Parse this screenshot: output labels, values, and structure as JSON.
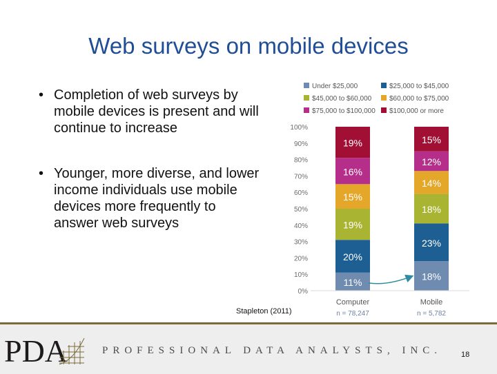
{
  "slide": {
    "title": "Web surveys on mobile devices",
    "bullets": [
      {
        "marker": "•",
        "text": "Completion of web surveys by mobile devices is present and will continue to increase"
      },
      {
        "marker": "•",
        "text": "Younger, more diverse, and lower income individuals use mobile devices more frequently to answer web surveys"
      }
    ],
    "citation": "Stapleton (2011)",
    "page_number": "18"
  },
  "footer": {
    "logo_text": "PDA",
    "company_name": "PROFESSIONAL DATA ANALYSTS, INC."
  },
  "chart_data": {
    "type": "bar",
    "stacked": true,
    "categories": [
      "Computer",
      "Mobile"
    ],
    "category_notes": [
      "n = 78,247",
      "n = 5,782"
    ],
    "series": [
      {
        "name": "Under $25,000",
        "color": "#6f8bb0",
        "values": [
          11,
          18
        ],
        "labels": [
          "11%",
          "18%"
        ]
      },
      {
        "name": "$25,000 to $45,000",
        "color": "#1d5f93",
        "values": [
          20,
          23
        ],
        "labels": [
          "20%",
          "23%"
        ]
      },
      {
        "name": "$45,000 to $60,000",
        "color": "#a8b432",
        "values": [
          19,
          18
        ],
        "labels": [
          "19%",
          "18%"
        ]
      },
      {
        "name": "$60,000 to $75,000",
        "color": "#e4a72a",
        "values": [
          15,
          14
        ],
        "labels": [
          "15%",
          "14%"
        ]
      },
      {
        "name": "$75,000 to $100,000",
        "color": "#b52f8a",
        "values": [
          16,
          12
        ],
        "labels": [
          "16%",
          "12%"
        ]
      },
      {
        "name": "$100,000 or more",
        "color": "#a10f34",
        "values": [
          19,
          15
        ],
        "labels": [
          "19%",
          "15%"
        ]
      }
    ],
    "yticks": [
      "0%",
      "10%",
      "20%",
      "30%",
      "40%",
      "50%",
      "60%",
      "70%",
      "80%",
      "90%",
      "100%"
    ],
    "ylim": [
      0,
      100
    ],
    "grid": false,
    "legend_position": "top",
    "annotation": "arrow from Computer under $25,000 segment to Mobile under $25,000 segment"
  }
}
